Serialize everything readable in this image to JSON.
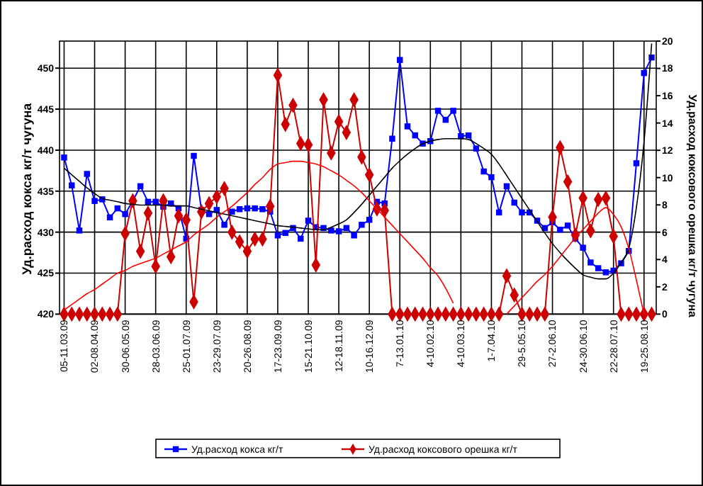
{
  "chart_data": {
    "type": "line",
    "ylabel": "Уд.расход кокса кг/т чугуна",
    "y2label": "Уд.расход коксового орешка кг/т чугуна",
    "categories": [
      "05-11.03.09",
      null,
      null,
      null,
      "02-08.04.09",
      null,
      null,
      null,
      "30-06.05.09",
      null,
      null,
      null,
      "28-03.06.09",
      null,
      null,
      null,
      "25-01.07.09",
      null,
      null,
      null,
      "23-29.07.09",
      null,
      null,
      null,
      "20-26.08.09",
      null,
      null,
      null,
      "17-23.09.09",
      null,
      null,
      null,
      "15-21.10.09",
      null,
      null,
      null,
      "12-18.11.09",
      null,
      null,
      null,
      "10-16.12.09",
      null,
      null,
      null,
      "7-13.01.10",
      null,
      null,
      null,
      "4-10.02.10",
      null,
      null,
      null,
      "4-10.03.10",
      null,
      null,
      null,
      "1-7.04.10",
      null,
      null,
      null,
      "29-5.05.10",
      null,
      null,
      null,
      "27-2.06.10",
      null,
      null,
      null,
      "24-30.06.10",
      null,
      null,
      null,
      "22-28.07.10",
      null,
      null,
      null,
      "19-25.08.10",
      null
    ],
    "ylim": [
      420,
      453.3
    ],
    "yticks": [
      420,
      425,
      430,
      435,
      440,
      445,
      450
    ],
    "y2lim": [
      0,
      20
    ],
    "y2ticks": [
      0,
      2,
      4,
      6,
      8,
      10,
      12,
      14,
      16,
      18,
      20
    ],
    "grid": true,
    "legend": "bottom",
    "series": [
      {
        "name": "Уд.расход кокса кг/т",
        "color": "#0000ff",
        "marker": "square",
        "values": [
          439.1,
          435.7,
          430.2,
          437.1,
          433.8,
          434.0,
          431.8,
          432.9,
          432.2,
          433.8,
          435.6,
          433.7,
          433.7,
          433.1,
          433.5,
          432.9,
          429.2,
          439.3,
          432.7,
          432.2,
          432.7,
          430.9,
          432.5,
          432.8,
          432.9,
          432.9,
          432.8,
          432.5,
          429.6,
          429.9,
          430.5,
          429.2,
          431.4,
          430.6,
          430.5,
          430.2,
          430.1,
          430.5,
          429.6,
          430.9,
          431.5,
          433.7,
          433.5,
          441.4,
          451.0,
          442.9,
          441.8,
          440.8,
          441.1,
          444.8,
          443.7,
          444.8,
          441.7,
          441.8,
          440.2,
          437.4,
          436.7,
          432.4,
          435.6,
          433.6,
          432.4,
          432.4,
          431.4,
          430.5,
          431.2,
          430.3,
          430.8,
          429.2,
          428.1,
          426.3,
          425.6,
          425.1,
          425.3,
          426.2,
          427.7,
          438.4,
          449.4,
          451.3
        ]
      },
      {
        "name": "Уд.расход коксового орешка кг/т",
        "color": "#cc0000",
        "marker": "diamond",
        "axis": "y2",
        "values": [
          0,
          0,
          0,
          0,
          0,
          0,
          0,
          0,
          5.9,
          8.3,
          4.6,
          7.4,
          3.5,
          8.3,
          4.2,
          7.2,
          6.9,
          0.9,
          7.5,
          8.1,
          8.6,
          9.2,
          6.0,
          5.3,
          4.6,
          5.5,
          5.5,
          7.9,
          17.5,
          13.9,
          15.3,
          12.5,
          12.4,
          3.6,
          15.7,
          11.8,
          14.1,
          13.3,
          15.7,
          11.5,
          10.2,
          7.7,
          7.6,
          0,
          0,
          0,
          0,
          0,
          0,
          0,
          0,
          0,
          0,
          0,
          0,
          0,
          0,
          0,
          2.8,
          1.4,
          0,
          0,
          0,
          0,
          7.1,
          12.2,
          9.7,
          5.8,
          8.5,
          6.1,
          8.4,
          8.5,
          5.7,
          0,
          0,
          0,
          0,
          0
        ]
      },
      {
        "type": "line",
        "color": "#000000",
        "marker": "none",
        "values": [
          437.8,
          437.0,
          436.2,
          435.4,
          434.7,
          434.1,
          433.9,
          433.7,
          433.5,
          433.4,
          433.3,
          433.3,
          433.3,
          433.3,
          433.2,
          433.2,
          433.2,
          433.0,
          432.8,
          432.6,
          432.4,
          432.2,
          432.0,
          431.8,
          431.6,
          431.4,
          431.2,
          431.0,
          430.8,
          430.7,
          430.6,
          430.5,
          430.4,
          430.3,
          430.3,
          430.6,
          431.0,
          431.5,
          432.4,
          433.4,
          434.5,
          435.6,
          436.7,
          437.8,
          438.7,
          439.5,
          440.2,
          440.8,
          441.1,
          441.3,
          441.4,
          441.4,
          441.4,
          441.3,
          440.8,
          440.2,
          439.5,
          438.3,
          436.9,
          435.5,
          434.1,
          432.7,
          431.3,
          429.9,
          428.6,
          427.5,
          426.5,
          425.6,
          424.8,
          424.5,
          424.3,
          424.3,
          425.0,
          426.3,
          428.0,
          433.0,
          441.0,
          453.0
        ]
      },
      {
        "type": "line",
        "color": "#ff0000",
        "marker": "none",
        "axis": "y2",
        "values": [
          0.3,
          0.7,
          1.1,
          1.5,
          1.8,
          2.2,
          2.6,
          3.0,
          3.2,
          3.5,
          3.7,
          3.9,
          4.1,
          4.4,
          4.7,
          5.0,
          5.3,
          5.8,
          6.2,
          6.6,
          7.1,
          7.5,
          7.9,
          8.4,
          8.9,
          9.5,
          10.0,
          10.6,
          11.0,
          11.1,
          11.2,
          11.2,
          11.1,
          11.0,
          10.8,
          10.5,
          10.2,
          9.8,
          9.4,
          8.9,
          8.3,
          7.7,
          7.1,
          6.5,
          5.9,
          5.3,
          4.7,
          4.1,
          3.4,
          2.8,
          1.9,
          0.8,
          null,
          null,
          null,
          null,
          null,
          null,
          0,
          0.6,
          1.2,
          1.8,
          2.4,
          2.9,
          3.5,
          4.2,
          4.9,
          5.6,
          6.2,
          6.8,
          7.4,
          7.8,
          7.3,
          6.4,
          4.8,
          2.5,
          0,
          null
        ]
      }
    ]
  }
}
